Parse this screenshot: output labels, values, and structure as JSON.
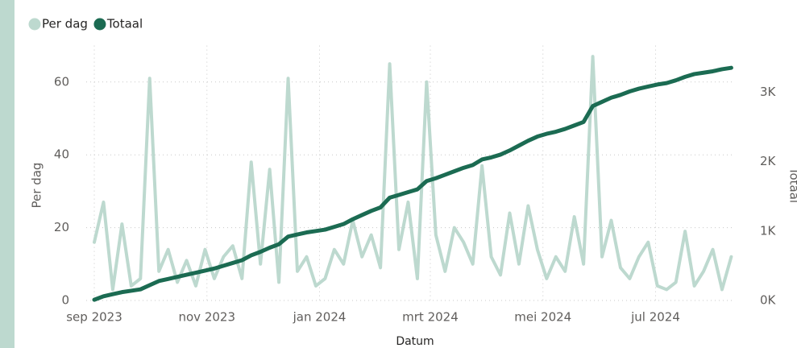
{
  "chart_data": {
    "type": "line",
    "legend": "top-left",
    "y_label": "Per dag",
    "y2_label": "Totaal",
    "x_label": "Datum",
    "x": [
      "2023-09-01",
      "2023-09-06",
      "2023-09-11",
      "2023-09-16",
      "2023-09-21",
      "2023-09-26",
      "2023-10-01",
      "2023-10-06",
      "2023-10-11",
      "2023-10-16",
      "2023-10-21",
      "2023-10-26",
      "2023-10-31",
      "2023-11-05",
      "2023-11-10",
      "2023-11-15",
      "2023-11-20",
      "2023-11-25",
      "2023-11-30",
      "2023-12-05",
      "2023-12-10",
      "2023-12-15",
      "2023-12-20",
      "2023-12-25",
      "2023-12-30",
      "2024-01-04",
      "2024-01-09",
      "2024-01-14",
      "2024-01-19",
      "2024-01-24",
      "2024-01-29",
      "2024-02-03",
      "2024-02-08",
      "2024-02-13",
      "2024-02-18",
      "2024-02-23",
      "2024-02-28",
      "2024-03-04",
      "2024-03-09",
      "2024-03-14",
      "2024-03-19",
      "2024-03-24",
      "2024-03-29",
      "2024-04-03",
      "2024-04-08",
      "2024-04-13",
      "2024-04-18",
      "2024-04-23",
      "2024-04-28",
      "2024-05-03",
      "2024-05-08",
      "2024-05-13",
      "2024-05-18",
      "2024-05-23",
      "2024-05-28",
      "2024-06-02",
      "2024-06-07",
      "2024-06-12",
      "2024-06-17",
      "2024-06-22",
      "2024-06-27",
      "2024-07-02",
      "2024-07-07",
      "2024-07-12",
      "2024-07-17",
      "2024-07-22",
      "2024-07-27",
      "2024-08-01",
      "2024-08-06",
      "2024-08-11"
    ],
    "series": [
      {
        "name": "Per dag",
        "color": "#bdd9cf",
        "axis": "y",
        "values": [
          16,
          27,
          3,
          21,
          4,
          6,
          61,
          8,
          14,
          5,
          11,
          4,
          14,
          6,
          12,
          15,
          6,
          38,
          10,
          36,
          5,
          61,
          8,
          12,
          4,
          6,
          14,
          10,
          22,
          12,
          18,
          9,
          65,
          14,
          27,
          6,
          60,
          18,
          8,
          20,
          16,
          10,
          37,
          12,
          7,
          24,
          10,
          26,
          14,
          6,
          12,
          8,
          23,
          10,
          67,
          12,
          22,
          9,
          6,
          12,
          16,
          4,
          3,
          5,
          19,
          4,
          8,
          14,
          3,
          12
        ]
      },
      {
        "name": "Totaal",
        "color": "#1b6b52",
        "axis": "y2",
        "values": [
          10,
          60,
          90,
          120,
          140,
          160,
          220,
          280,
          310,
          340,
          370,
          400,
          430,
          460,
          500,
          540,
          580,
          650,
          700,
          760,
          810,
          920,
          950,
          980,
          1000,
          1020,
          1060,
          1100,
          1170,
          1230,
          1290,
          1340,
          1480,
          1520,
          1560,
          1600,
          1720,
          1760,
          1810,
          1860,
          1910,
          1950,
          2030,
          2060,
          2100,
          2160,
          2230,
          2300,
          2360,
          2400,
          2430,
          2470,
          2520,
          2570,
          2800,
          2860,
          2920,
          2960,
          3010,
          3050,
          3080,
          3110,
          3130,
          3170,
          3220,
          3260,
          3280,
          3300,
          3330,
          3350
        ]
      }
    ],
    "xlim": [
      "2023-09-01",
      "2024-08-13"
    ],
    "xticks": [
      {
        "value": "2023-09-01",
        "label": "sep 2023"
      },
      {
        "value": "2023-11-01",
        "label": "nov 2023"
      },
      {
        "value": "2024-01-01",
        "label": "jan 2024"
      },
      {
        "value": "2024-03-01",
        "label": "mrt 2024"
      },
      {
        "value": "2024-05-01",
        "label": "mei 2024"
      },
      {
        "value": "2024-07-01",
        "label": "jul 2024"
      }
    ],
    "ylim": [
      0,
      70
    ],
    "yticks": [
      0,
      20,
      40,
      60
    ],
    "y2lim": [
      0,
      3670
    ],
    "y2ticks": [
      {
        "value": 0,
        "label": "0K"
      },
      {
        "value": 1000,
        "label": "1K"
      },
      {
        "value": 2000,
        "label": "2K"
      },
      {
        "value": 3000,
        "label": "3K"
      }
    ],
    "grid": true
  }
}
